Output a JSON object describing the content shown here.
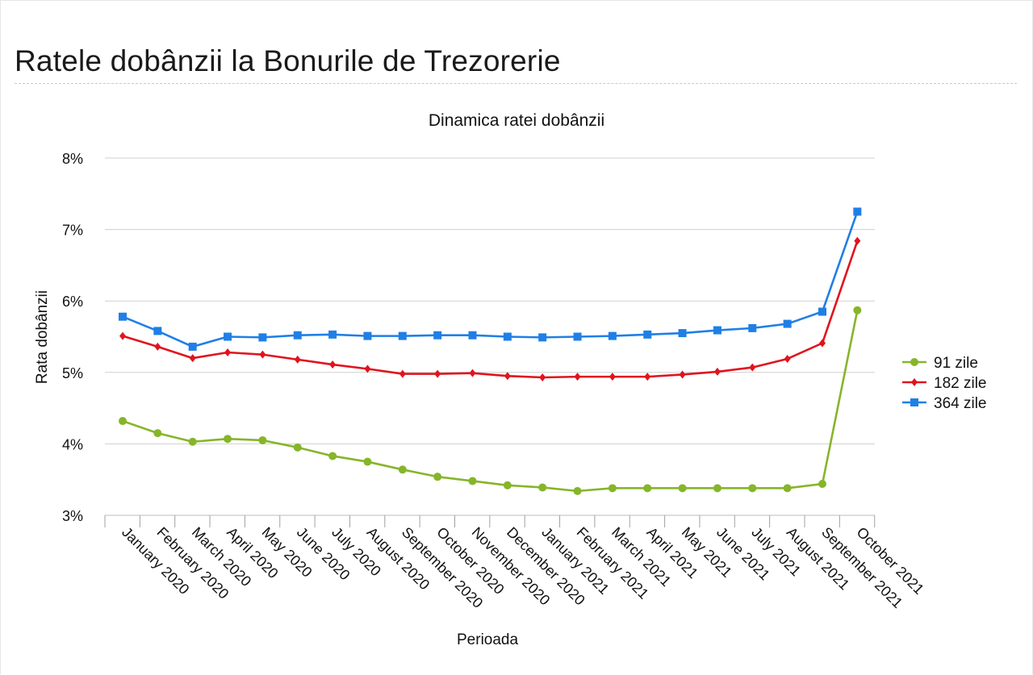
{
  "page": {
    "title": "Ratele dobânzii la Bonurile de Trezorerie"
  },
  "chart_data": {
    "type": "line",
    "title": "Dinamica ratei dobânzii",
    "xlabel": "Perioada",
    "ylabel": "Rata dobânzii",
    "ylim": [
      3,
      8
    ],
    "yticks": [
      "3%",
      "4%",
      "5%",
      "6%",
      "7%",
      "8%"
    ],
    "y_tick_values": [
      3,
      4,
      5,
      6,
      7,
      8
    ],
    "grid": true,
    "legend_position": "right",
    "categories": [
      "January 2020",
      "February 2020",
      "March 2020",
      "April 2020",
      "May 2020",
      "June 2020",
      "July 2020",
      "August 2020",
      "September 2020",
      "October 2020",
      "November 2020",
      "December 2020",
      "January 2021",
      "February 2021",
      "March 2021",
      "April 2021",
      "May 2021",
      "June 2021",
      "July 2021",
      "August 2021",
      "September 2021",
      "October 2021"
    ],
    "series": [
      {
        "name": "91 zile",
        "color": "#86b52a",
        "marker": "circle",
        "values": [
          4.32,
          4.15,
          4.03,
          4.07,
          4.05,
          3.95,
          3.83,
          3.75,
          3.64,
          3.54,
          3.48,
          3.42,
          3.39,
          3.34,
          3.38,
          3.38,
          3.38,
          3.38,
          3.38,
          3.38,
          3.44,
          5.87
        ]
      },
      {
        "name": "182 zile",
        "color": "#e0141e",
        "marker": "diamond",
        "values": [
          5.51,
          5.36,
          5.2,
          5.28,
          5.25,
          5.18,
          5.11,
          5.05,
          4.98,
          4.98,
          4.99,
          4.95,
          4.93,
          4.94,
          4.94,
          4.94,
          4.97,
          5.01,
          5.07,
          5.19,
          5.41,
          6.84
        ]
      },
      {
        "name": "364 zile",
        "color": "#1f7fe6",
        "marker": "square",
        "values": [
          5.78,
          5.58,
          5.36,
          5.5,
          5.49,
          5.52,
          5.53,
          5.51,
          5.51,
          5.52,
          5.52,
          5.5,
          5.49,
          5.5,
          5.51,
          5.53,
          5.55,
          5.59,
          5.62,
          5.68,
          5.85,
          7.25
        ]
      }
    ]
  }
}
